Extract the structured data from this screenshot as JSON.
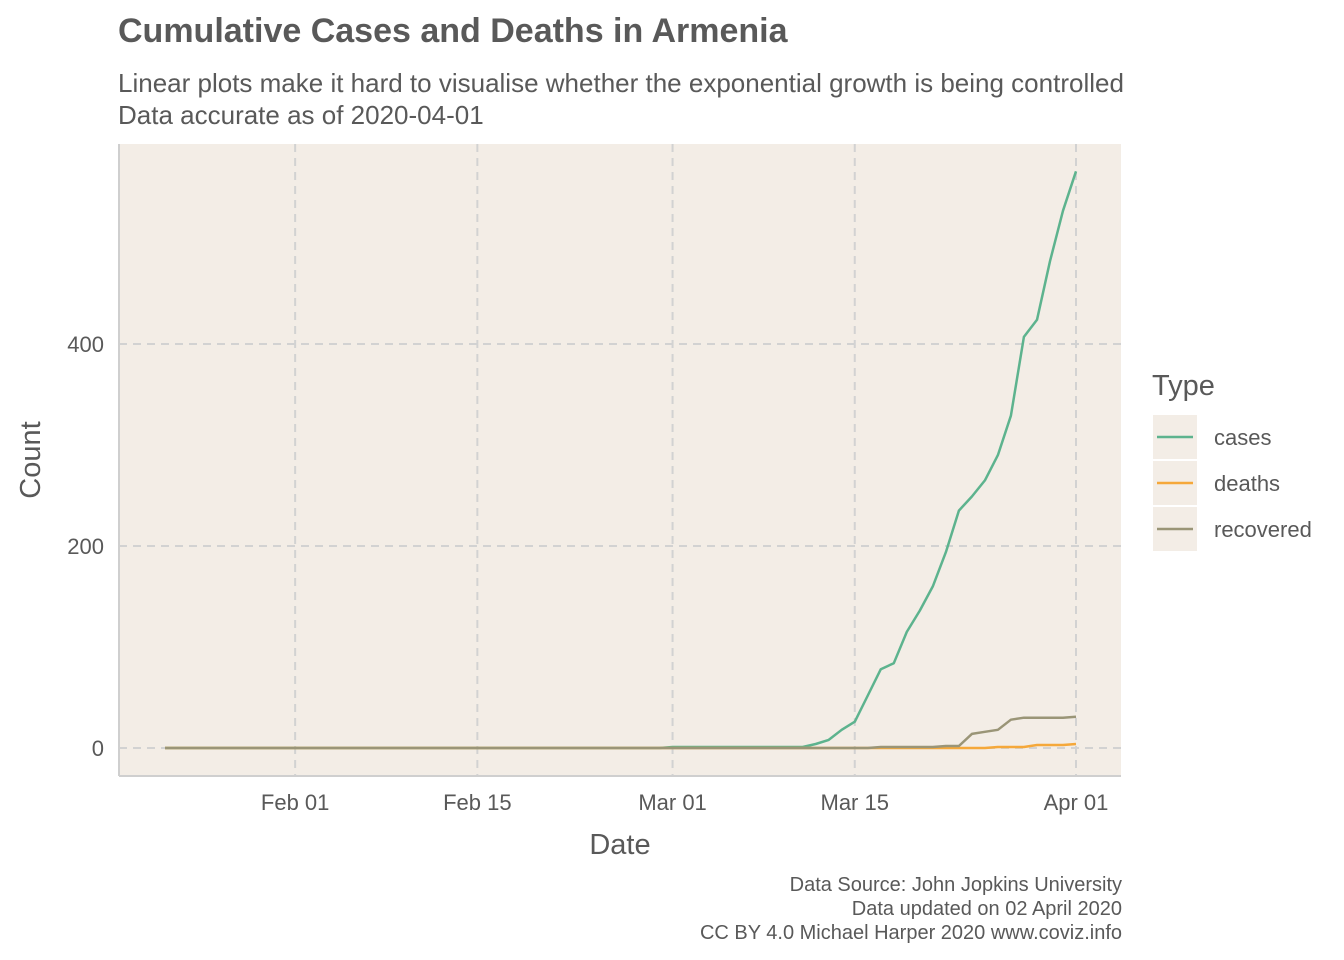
{
  "chart_data": {
    "type": "line",
    "title": "Cumulative Cases and Deaths in Armenia",
    "subtitle": [
      "Linear plots make it hard to visualise whether the exponential growth is being controlled",
      "Data accurate as of 2020-04-01"
    ],
    "xlabel": "Date",
    "ylabel": "Count",
    "x_range": [
      "2020-01-22",
      "2020-04-01"
    ],
    "ylim": [
      -28,
      570
    ],
    "x_ticks": [
      {
        "date": "2020-02-01",
        "label": "Feb 01"
      },
      {
        "date": "2020-02-15",
        "label": "Feb 15"
      },
      {
        "date": "2020-03-01",
        "label": "Mar 01"
      },
      {
        "date": "2020-03-15",
        "label": "Mar 15"
      },
      {
        "date": "2020-04-01",
        "label": "Apr 01"
      }
    ],
    "y_ticks": [
      0,
      200,
      400
    ],
    "grid": true,
    "legend_title": "Type",
    "legend_position": "right",
    "series": [
      {
        "name": "cases",
        "color": "#5db38e",
        "points": [
          [
            "2020-01-22",
            0
          ],
          [
            "2020-02-29",
            0
          ],
          [
            "2020-03-01",
            1
          ],
          [
            "2020-03-10",
            1
          ],
          [
            "2020-03-11",
            1
          ],
          [
            "2020-03-12",
            4
          ],
          [
            "2020-03-13",
            8
          ],
          [
            "2020-03-14",
            18
          ],
          [
            "2020-03-15",
            26
          ],
          [
            "2020-03-16",
            52
          ],
          [
            "2020-03-17",
            78
          ],
          [
            "2020-03-18",
            84
          ],
          [
            "2020-03-19",
            115
          ],
          [
            "2020-03-20",
            136
          ],
          [
            "2020-03-21",
            160
          ],
          [
            "2020-03-22",
            194
          ],
          [
            "2020-03-23",
            235
          ],
          [
            "2020-03-24",
            249
          ],
          [
            "2020-03-25",
            265
          ],
          [
            "2020-03-26",
            290
          ],
          [
            "2020-03-27",
            329
          ],
          [
            "2020-03-28",
            407
          ],
          [
            "2020-03-29",
            424
          ],
          [
            "2020-03-30",
            482
          ],
          [
            "2020-03-31",
            532
          ],
          [
            "2020-04-01",
            571
          ]
        ]
      },
      {
        "name": "deaths",
        "color": "#f5a83a",
        "points": [
          [
            "2020-01-22",
            0
          ],
          [
            "2020-03-25",
            0
          ],
          [
            "2020-03-26",
            1
          ],
          [
            "2020-03-27",
            1
          ],
          [
            "2020-03-28",
            1
          ],
          [
            "2020-03-29",
            3
          ],
          [
            "2020-03-30",
            3
          ],
          [
            "2020-03-31",
            3
          ],
          [
            "2020-04-01",
            4
          ]
        ]
      },
      {
        "name": "recovered",
        "color": "#9a9577",
        "points": [
          [
            "2020-01-22",
            0
          ],
          [
            "2020-03-15",
            0
          ],
          [
            "2020-03-16",
            0
          ],
          [
            "2020-03-17",
            1
          ],
          [
            "2020-03-18",
            1
          ],
          [
            "2020-03-19",
            1
          ],
          [
            "2020-03-20",
            1
          ],
          [
            "2020-03-21",
            1
          ],
          [
            "2020-03-22",
            2
          ],
          [
            "2020-03-23",
            2
          ],
          [
            "2020-03-24",
            14
          ],
          [
            "2020-03-25",
            16
          ],
          [
            "2020-03-26",
            18
          ],
          [
            "2020-03-27",
            28
          ],
          [
            "2020-03-28",
            30
          ],
          [
            "2020-03-29",
            30
          ],
          [
            "2020-03-30",
            30
          ],
          [
            "2020-03-31",
            30
          ],
          [
            "2020-04-01",
            31
          ]
        ]
      }
    ],
    "caption": [
      "Data Source: John Jopkins University",
      "Data updated on 02 April 2020",
      "CC BY 4.0 Michael Harper 2020 www.coviz.info"
    ],
    "colors": {
      "panel_background": "#f3ede6",
      "grid": "#d2d2d2",
      "text": "#595959"
    }
  }
}
